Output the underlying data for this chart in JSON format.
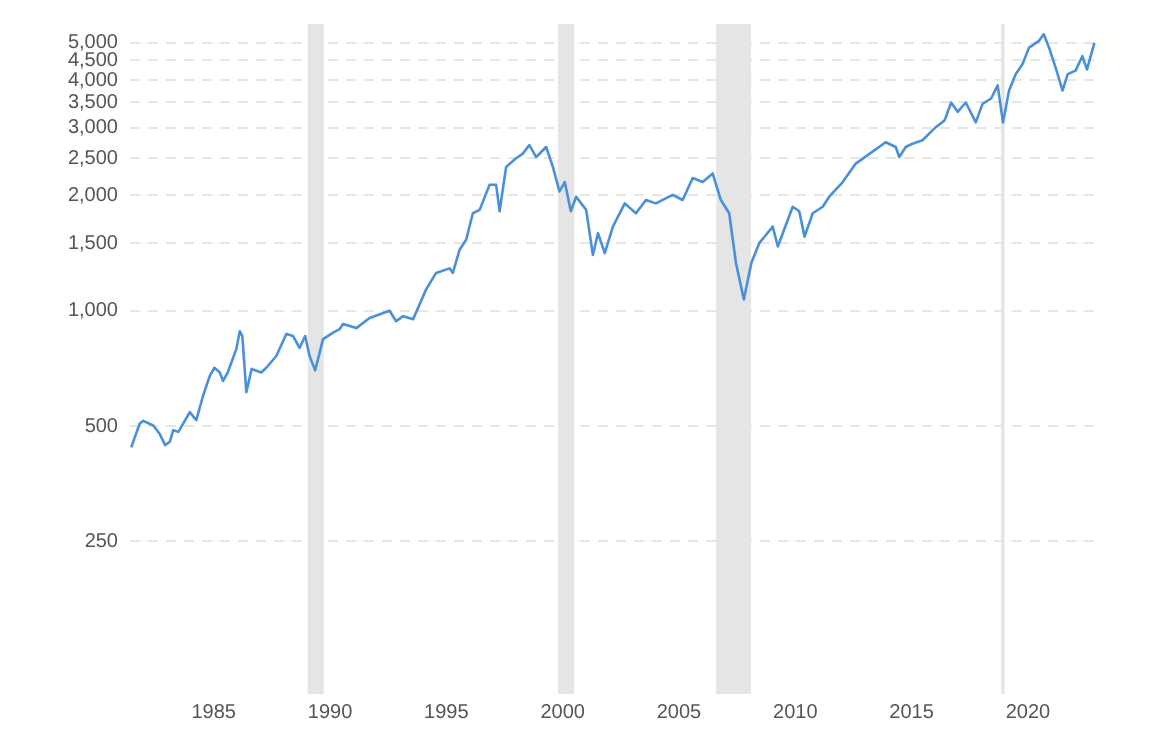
{
  "chart_data": {
    "type": "line",
    "log": "y",
    "grid": "y",
    "legend": false,
    "marker": "none",
    "line_style": "solid",
    "xlim": [
      1981.4,
      2023.1
    ],
    "xticks": [
      1985,
      1990,
      1995,
      2000,
      2005,
      2010,
      2015,
      2020
    ],
    "ylim": [
      100,
      5600
    ],
    "yticks": [
      250,
      500,
      {
        "value": 1000,
        "label": "1,000"
      },
      {
        "value": 1500,
        "label": "1,500"
      },
      {
        "value": 2000,
        "label": "2,000"
      },
      {
        "value": 2500,
        "label": "2,500"
      },
      {
        "value": 3000,
        "label": "3,000"
      },
      {
        "value": 3500,
        "label": "3,500"
      },
      {
        "value": 4000,
        "label": "4,000"
      },
      {
        "value": 4500,
        "label": "4,500"
      },
      {
        "value": 5000,
        "label": "5,000"
      }
    ],
    "bands": [
      {
        "axis": "x",
        "from": 1989.04,
        "to": 1989.73,
        "color": "#e5e5e5"
      },
      {
        "axis": "x",
        "from": 1999.8,
        "to": 2000.5,
        "color": "#e5e5e5"
      },
      {
        "axis": "x",
        "from": 2006.6,
        "to": 2008.1,
        "color": "#e5e5e5"
      },
      {
        "axis": "x",
        "from": 2018.85,
        "to": 2019.0,
        "color": "#e5e5e5"
      }
    ],
    "series": [
      {
        "color": "#4a90d9",
        "x": [
          1981.45,
          1981.82,
          1981.97,
          1982.4,
          1982.68,
          1982.91,
          1983.11,
          1983.26,
          1983.48,
          1983.97,
          1984.25,
          1984.54,
          1984.83,
          1985.03,
          1985.26,
          1985.4,
          1985.6,
          1985.97,
          1986.12,
          1986.23,
          1986.4,
          1986.63,
          1987.04,
          1987.26,
          1987.69,
          1988.12,
          1988.41,
          1988.69,
          1988.93,
          1989.12,
          1989.36,
          1989.7,
          1990.13,
          1990.41,
          1990.56,
          1991.13,
          1991.7,
          1992.56,
          1992.84,
          1993.14,
          1993.57,
          1994.13,
          1994.56,
          1995.14,
          1995.28,
          1995.57,
          1995.85,
          1996.14,
          1996.43,
          1996.86,
          1997.14,
          1997.29,
          1997.57,
          1998.0,
          1998.29,
          1998.57,
          1998.86,
          1999.29,
          1999.58,
          1999.86,
          2000.09,
          2000.35,
          2000.58,
          2001.01,
          2001.3,
          2001.52,
          2001.81,
          2002.16,
          2002.67,
          2003.15,
          2003.58,
          2004.01,
          2004.73,
          2005.16,
          2005.59,
          2006.02,
          2006.45,
          2006.8,
          2007.16,
          2007.45,
          2007.79,
          2008.11,
          2008.45,
          2009.03,
          2009.25,
          2009.89,
          2010.17,
          2010.4,
          2010.75,
          2011.18,
          2011.46,
          2012.04,
          2012.6,
          2013.32,
          2013.89,
          2014.32,
          2014.47,
          2014.75,
          2015.04,
          2015.47,
          2016.04,
          2016.42,
          2016.7,
          2016.98,
          2017.33,
          2017.76,
          2018.05,
          2018.42,
          2018.7,
          2018.93,
          2019.19,
          2019.48,
          2019.77,
          2020.05,
          2020.48,
          2020.68,
          2020.91,
          2021.19,
          2021.49,
          2021.71,
          2022.05,
          2022.34,
          2022.54,
          2022.86
        ],
        "values": [
          440,
          508,
          516,
          502,
          477,
          446,
          455,
          488,
          483,
          544,
          518,
          600,
          676,
          710,
          690,
          656,
          690,
          794,
          884,
          859,
          613,
          705,
          690,
          710,
          762,
          870,
          859,
          800,
          859,
          762,
          699,
          843,
          877,
          895,
          923,
          901,
          957,
          1000,
          939,
          968,
          950,
          1137,
          1255,
          1290,
          1255,
          1443,
          1532,
          1796,
          1833,
          2131,
          2131,
          1818,
          2373,
          2500,
          2570,
          2706,
          2518,
          2674,
          2373,
          2048,
          2167,
          1818,
          1984,
          1833,
          1398,
          1594,
          1414,
          1658,
          1906,
          1796,
          1945,
          1906,
          2007,
          1945,
          2219,
          2167,
          2281,
          1945,
          1796,
          1332,
          1070,
          1332,
          1501,
          1658,
          1471,
          1868,
          1818,
          1561,
          1796,
          1868,
          1984,
          2167,
          2421,
          2601,
          2752,
          2674,
          2518,
          2674,
          2729,
          2785,
          3013,
          3138,
          3494,
          3304,
          3494,
          3100,
          3465,
          3579,
          3873,
          3100,
          3754,
          4145,
          4401,
          4859,
          5062,
          5265,
          4859,
          4313,
          3754,
          4145,
          4231,
          4615,
          4262,
          5000
        ]
      }
    ]
  }
}
